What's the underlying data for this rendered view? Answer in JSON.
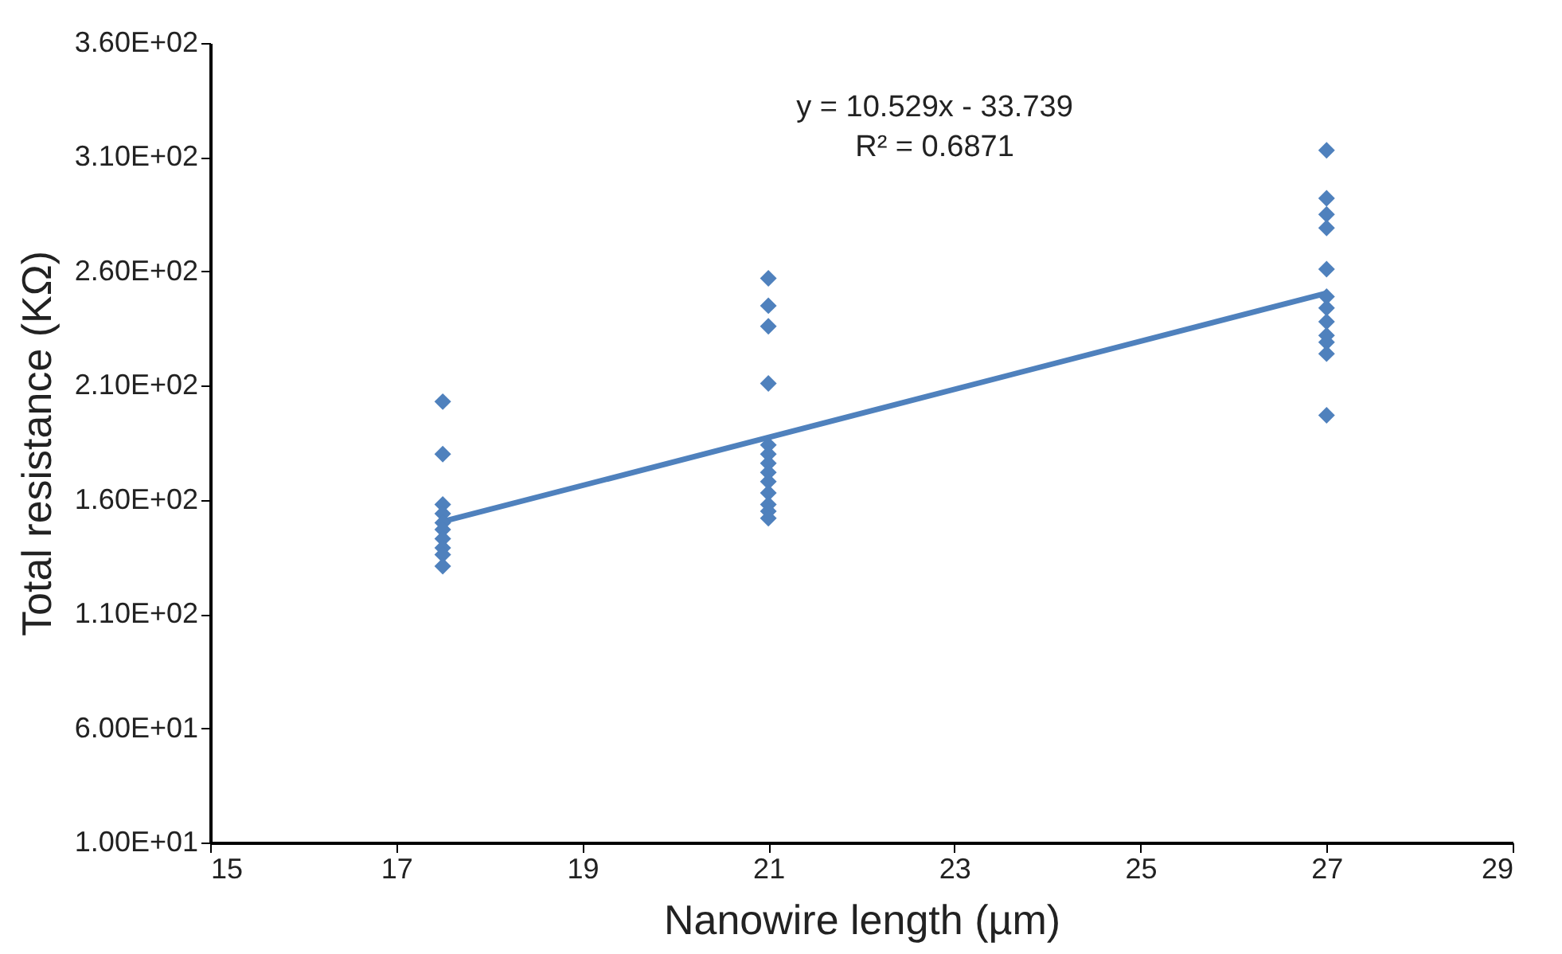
{
  "chart_data": {
    "type": "scatter",
    "xlabel": "Nanowire length (µm)",
    "ylabel": "Total resistance (KΩ)",
    "xlim": [
      15,
      29
    ],
    "xticks": [
      15,
      17,
      19,
      21,
      23,
      25,
      27,
      29
    ],
    "ylim": [
      10,
      360
    ],
    "yticks": [
      {
        "value": 10,
        "label": "1.00E+01"
      },
      {
        "value": 60,
        "label": "6.00E+01"
      },
      {
        "value": 110,
        "label": "1.10E+02"
      },
      {
        "value": 160,
        "label": "1.60E+02"
      },
      {
        "value": 210,
        "label": "2.10E+02"
      },
      {
        "value": 260,
        "label": "2.60E+02"
      },
      {
        "value": 310,
        "label": "3.10E+02"
      },
      {
        "value": 360,
        "label": "3.60E+02"
      }
    ],
    "grid": false,
    "annotations": [
      "y = 10.529x - 33.739",
      "R² = 0.6871"
    ],
    "series": [
      {
        "marker": "diamond",
        "color": "#4f81bd",
        "x": [
          17.5,
          17.5,
          17.5,
          17.5,
          17.5,
          17.5,
          17.5,
          17.5,
          17.5,
          17.5,
          21,
          21,
          21,
          21,
          21,
          21,
          21,
          21,
          21,
          21,
          21,
          21,
          21,
          27,
          27,
          27,
          27,
          27,
          27,
          27,
          27,
          27,
          27,
          27,
          27
        ],
        "values": [
          203,
          180,
          158,
          154,
          150,
          147,
          143,
          139,
          136,
          131,
          257,
          245,
          236,
          211,
          184,
          180,
          176,
          172,
          168,
          163,
          158,
          155,
          152,
          313,
          292,
          285,
          279,
          261,
          249,
          244,
          238,
          232,
          229,
          224,
          197
        ]
      },
      {
        "type": "line",
        "marker": "none",
        "color": "#4f81bd",
        "x": [
          17.5,
          27
        ],
        "values": [
          150.5,
          250.5
        ]
      }
    ]
  }
}
